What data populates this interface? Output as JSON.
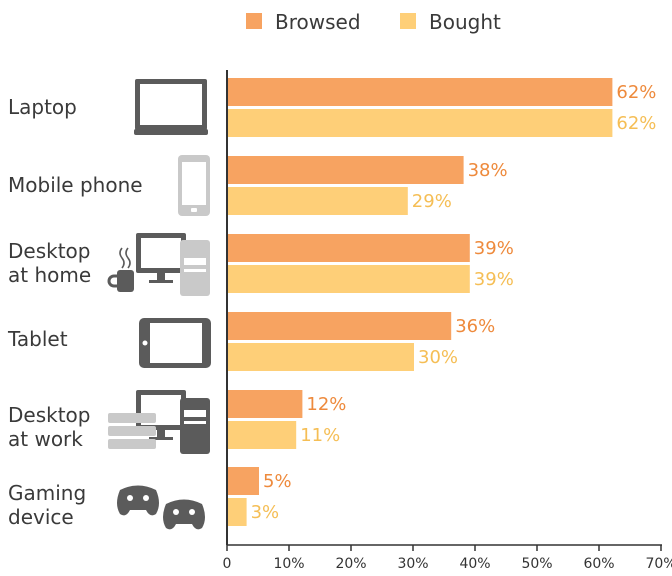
{
  "colors": {
    "browsed": "#F7A361",
    "bought": "#FECF78",
    "axis": "#333333",
    "icon": "#5b5b5b",
    "icon_light": "#c9c9c9"
  },
  "chart_data": {
    "type": "bar",
    "orientation": "horizontal",
    "categories": [
      {
        "lines": [
          "Laptop"
        ],
        "icon": "laptop-icon"
      },
      {
        "lines": [
          "Mobile phone"
        ],
        "icon": "mobile-phone-icon"
      },
      {
        "lines": [
          "Desktop",
          "at home"
        ],
        "icon": "desktop-at-home-icon"
      },
      {
        "lines": [
          "Tablet"
        ],
        "icon": "tablet-icon"
      },
      {
        "lines": [
          "Desktop",
          "at work"
        ],
        "icon": "desktop-at-work-icon"
      },
      {
        "lines": [
          "Gaming",
          "device"
        ],
        "icon": "gaming-device-icon"
      }
    ],
    "series": [
      {
        "name": "Browsed",
        "values": [
          62,
          38,
          39,
          36,
          12,
          5
        ],
        "labels": [
          "62%",
          "38%",
          "39%",
          "36%",
          "12%",
          "5%"
        ]
      },
      {
        "name": "Bought",
        "values": [
          62,
          29,
          39,
          30,
          11,
          3
        ],
        "labels": [
          "62%",
          "29%",
          "39%",
          "30%",
          "11%",
          "3%"
        ]
      }
    ],
    "xlim": [
      0,
      70
    ],
    "xticks": [
      "0",
      "10%",
      "20%",
      "30%",
      "40%",
      "50%",
      "60%",
      "70%"
    ],
    "legend": "top-center",
    "grid": false
  }
}
